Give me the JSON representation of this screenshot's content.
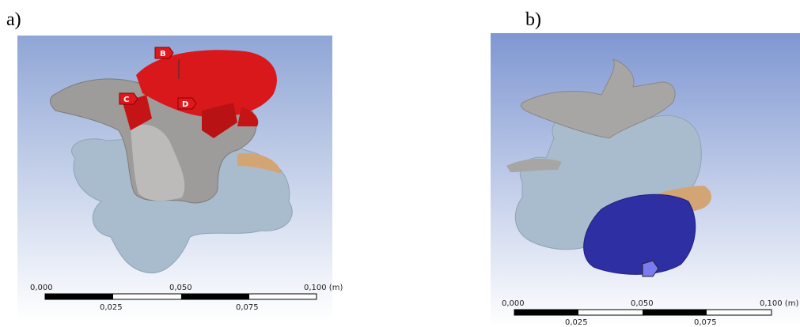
{
  "panels": [
    {
      "label": "a)",
      "markers": [
        "B",
        "C",
        "D"
      ],
      "scale_bar": {
        "top_labels": [
          "0,000",
          "0,050",
          "0,100 (m)"
        ],
        "bottom_labels": [
          "0,025",
          "0,075"
        ]
      }
    },
    {
      "label": "b)",
      "scale_bar": {
        "top_labels": [
          "0,000",
          "0,050",
          "0,100 (m)"
        ],
        "bottom_labels": [
          "0,025",
          "0,075"
        ]
      }
    }
  ]
}
